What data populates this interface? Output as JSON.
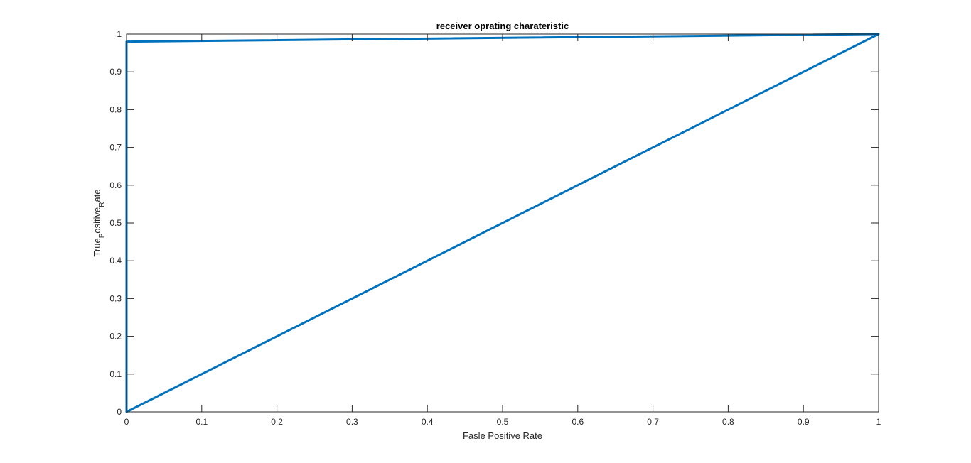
{
  "chart_data": {
    "type": "line",
    "title": "receiver oprating charateristic",
    "xlabel": "Fasle Positive Rate",
    "ylabel": {
      "parts": [
        {
          "text": "True",
          "sub": false
        },
        {
          "text": "P",
          "sub": true
        },
        {
          "text": "ositive",
          "sub": false
        },
        {
          "text": "R",
          "sub": true
        },
        {
          "text": "ate",
          "sub": false
        }
      ]
    },
    "xlim": [
      0,
      1
    ],
    "ylim": [
      0,
      1
    ],
    "xticks": [
      0,
      0.1,
      0.2,
      0.3,
      0.4,
      0.5,
      0.6,
      0.7,
      0.8,
      0.9,
      1
    ],
    "xtick_labels": [
      "0",
      "0.1",
      "0.2",
      "0.3",
      "0.4",
      "0.5",
      "0.6",
      "0.7",
      "0.8",
      "0.9",
      "1"
    ],
    "yticks": [
      0,
      0.1,
      0.2,
      0.3,
      0.4,
      0.5,
      0.6,
      0.7,
      0.8,
      0.9,
      1
    ],
    "ytick_labels": [
      "0",
      "0.1",
      "0.2",
      "0.3",
      "0.4",
      "0.5",
      "0.6",
      "0.7",
      "0.8",
      "0.9",
      "1"
    ],
    "grid": false,
    "box": true,
    "series": [
      {
        "color": "#0072BD",
        "x": [
          0,
          0,
          1,
          0
        ],
        "y": [
          0,
          0.98,
          1,
          0
        ]
      }
    ]
  }
}
